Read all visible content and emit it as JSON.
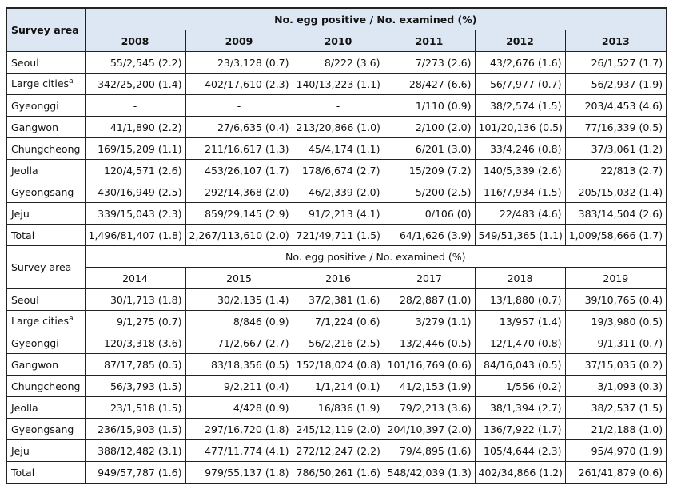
{
  "sections": [
    {
      "header": {
        "row_label": "Survey area",
        "title": "No. egg positive / No. examined (%)",
        "years": [
          "2008",
          "2009",
          "2010",
          "2011",
          "2012",
          "2013"
        ]
      },
      "rows": [
        {
          "area": "Seoul",
          "cells": [
            "55/2,545 (2.2)",
            "23/3,128 (0.7)",
            "8/222 (3.6)",
            "7/273 (2.6)",
            "43/2,676 (1.6)",
            "26/1,527 (1.7)"
          ]
        },
        {
          "area": "Large cities",
          "note": "a",
          "cells": [
            "342/25,200 (1.4)",
            "402/17,610 (2.3)",
            "140/13,223 (1.1)",
            "28/427 (6.6)",
            "56/7,977 (0.7)",
            "56/2,937 (1.9)"
          ]
        },
        {
          "area": "Gyeonggi",
          "cells": [
            "-",
            "-",
            "-",
            "1/110 (0.9)",
            "38/2,574 (1.5)",
            "203/4,453 (4.6)"
          ]
        },
        {
          "area": "Gangwon",
          "cells": [
            "41/1,890 (2.2)",
            "27/6,635 (0.4)",
            "213/20,866 (1.0)",
            "2/100 (2.0)",
            "101/20,136 (0.5)",
            "77/16,339 (0.5)"
          ]
        },
        {
          "area": "Chungcheong",
          "cells": [
            "169/15,209 (1.1)",
            "211/16,617 (1.3)",
            "45/4,174 (1.1)",
            "6/201 (3.0)",
            "33/4,246 (0.8)",
            "37/3,061 (1.2)"
          ]
        },
        {
          "area": "Jeolla",
          "cells": [
            "120/4,571 (2.6)",
            "453/26,107 (1.7)",
            "178/6,674 (2.7)",
            "15/209 (7.2)",
            "140/5,339 (2.6)",
            "22/813 (2.7)"
          ]
        },
        {
          "area": "Gyeongsang",
          "cells": [
            "430/16,949 (2.5)",
            "292/14,368 (2.0)",
            "46/2,339 (2.0)",
            "5/200 (2.5)",
            "116/7,934 (1.5)",
            "205/15,032 (1.4)"
          ]
        },
        {
          "area": "Jeju",
          "cells": [
            "339/15,043 (2.3)",
            "859/29,145 (2.9)",
            "91/2,213 (4.1)",
            "0/106 (0)",
            "22/483 (4.6)",
            "383/14,504 (2.6)"
          ]
        },
        {
          "area": "Total",
          "cells": [
            "1,496/81,407 (1.8)",
            "2,267/113,610 (2.0)",
            "721/49,711 (1.5)",
            "64/1,626 (3.9)",
            "549/51,365 (1.1)",
            "1,009/58,666 (1.7)"
          ]
        }
      ]
    },
    {
      "header": {
        "row_label": "Survey area",
        "title": "No. egg positive / No. examined (%)",
        "years": [
          "2014",
          "2015",
          "2016",
          "2017",
          "2018",
          "2019"
        ]
      },
      "rows": [
        {
          "area": "Seoul",
          "cells": [
            "30/1,713 (1.8)",
            "30/2,135 (1.4)",
            "37/2,381 (1.6)",
            "28/2,887 (1.0)",
            "13/1,880 (0.7)",
            "39/10,765 (0.4)"
          ]
        },
        {
          "area": "Large cities",
          "note": "a",
          "cells": [
            "9/1,275 (0.7)",
            "8/846 (0.9)",
            "7/1,224 (0.6)",
            "3/279 (1.1)",
            "13/957 (1.4)",
            "19/3,980 (0.5)"
          ]
        },
        {
          "area": "Gyeonggi",
          "cells": [
            "120/3,318 (3.6)",
            "71/2,667 (2.7)",
            "56/2,216 (2.5)",
            "13/2,446 (0.5)",
            "12/1,470 (0.8)",
            "9/1,311 (0.7)"
          ]
        },
        {
          "area": "Gangwon",
          "cells": [
            "87/17,785 (0.5)",
            "83/18,356 (0.5)",
            "152/18,024 (0.8)",
            "101/16,769 (0.6)",
            "84/16,043 (0.5)",
            "37/15,035 (0.2)"
          ]
        },
        {
          "area": "Chungcheong",
          "cells": [
            "56/3,793 (1.5)",
            "9/2,211 (0.4)",
            "1/1,214 (0.1)",
            "41/2,153 (1.9)",
            "1/556 (0.2)",
            "3/1,093 (0.3)"
          ]
        },
        {
          "area": "Jeolla",
          "cells": [
            "23/1,518 (1.5)",
            "4/428 (0.9)",
            "16/836 (1.9)",
            "79/2,213 (3.6)",
            "38/1,394 (2.7)",
            "38/2,537 (1.5)"
          ]
        },
        {
          "area": "Gyeongsang",
          "cells": [
            "236/15,903 (1.5)",
            "297/16,720 (1.8)",
            "245/12,119 (2.0)",
            "204/10,397 (2.0)",
            "136/7,922 (1.7)",
            "21/2,188 (1.0)"
          ]
        },
        {
          "area": "Jeju",
          "cells": [
            "388/12,482 (3.1)",
            "477/11,774 (4.1)",
            "272/12,247 (2.2)",
            "79/4,895 (1.6)",
            "105/4,644 (2.3)",
            "95/4,970 (1.9)"
          ]
        },
        {
          "area": "Total",
          "cells": [
            "949/57,787 (1.6)",
            "979/55,137 (1.8)",
            "786/50,261 (1.6)",
            "548/42,039 (1.3)",
            "402/34,866 (1.2)",
            "261/41,879 (0.6)"
          ]
        }
      ]
    }
  ]
}
